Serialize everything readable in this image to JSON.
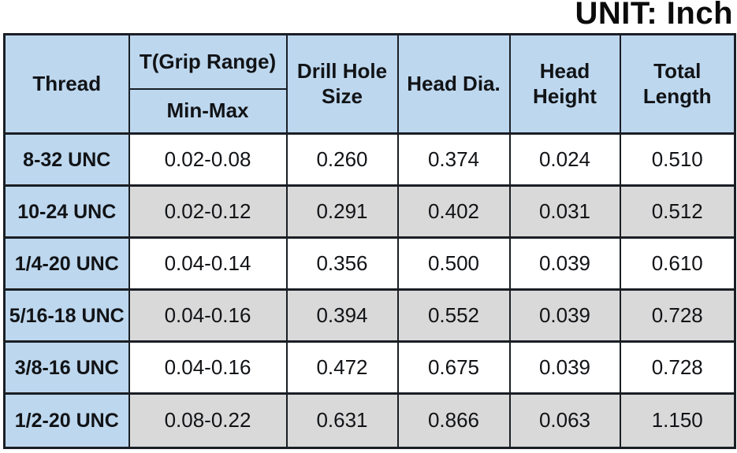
{
  "colors": {
    "header_bg": "#BDD7EE",
    "alt_row_bg": "#D9D9D9",
    "row_bg": "#FFFFFF",
    "border": "#1A1E24",
    "text": "#111316"
  },
  "chart_data": {
    "type": "table",
    "title": "UNIT: Inch",
    "columns": {
      "thread": "Thread",
      "grip_range": "T(Grip Range)",
      "grip_range_sub": "Min-Max",
      "drill_hole": "Drill Hole Size",
      "head_dia": "Head Dia.",
      "head_height": "Head Height",
      "total_length": "Total Length"
    },
    "rows": [
      {
        "thread": "8-32 UNC",
        "grip_range": "0.02-0.08",
        "drill_hole": "0.260",
        "head_dia": "0.374",
        "head_height": "0.024",
        "total_length": "0.510"
      },
      {
        "thread": "10-24 UNC",
        "grip_range": "0.02-0.12",
        "drill_hole": "0.291",
        "head_dia": "0.402",
        "head_height": "0.031",
        "total_length": "0.512"
      },
      {
        "thread": "1/4-20 UNC",
        "grip_range": "0.04-0.14",
        "drill_hole": "0.356",
        "head_dia": "0.500",
        "head_height": "0.039",
        "total_length": "0.610"
      },
      {
        "thread": "5/16-18 UNC",
        "grip_range": "0.04-0.16",
        "drill_hole": "0.394",
        "head_dia": "0.552",
        "head_height": "0.039",
        "total_length": "0.728"
      },
      {
        "thread": "3/8-16 UNC",
        "grip_range": "0.04-0.16",
        "drill_hole": "0.472",
        "head_dia": "0.675",
        "head_height": "0.039",
        "total_length": "0.728"
      },
      {
        "thread": "1/2-20 UNC",
        "grip_range": "0.08-0.22",
        "drill_hole": "0.631",
        "head_dia": "0.866",
        "head_height": "0.063",
        "total_length": "1.150"
      }
    ]
  }
}
